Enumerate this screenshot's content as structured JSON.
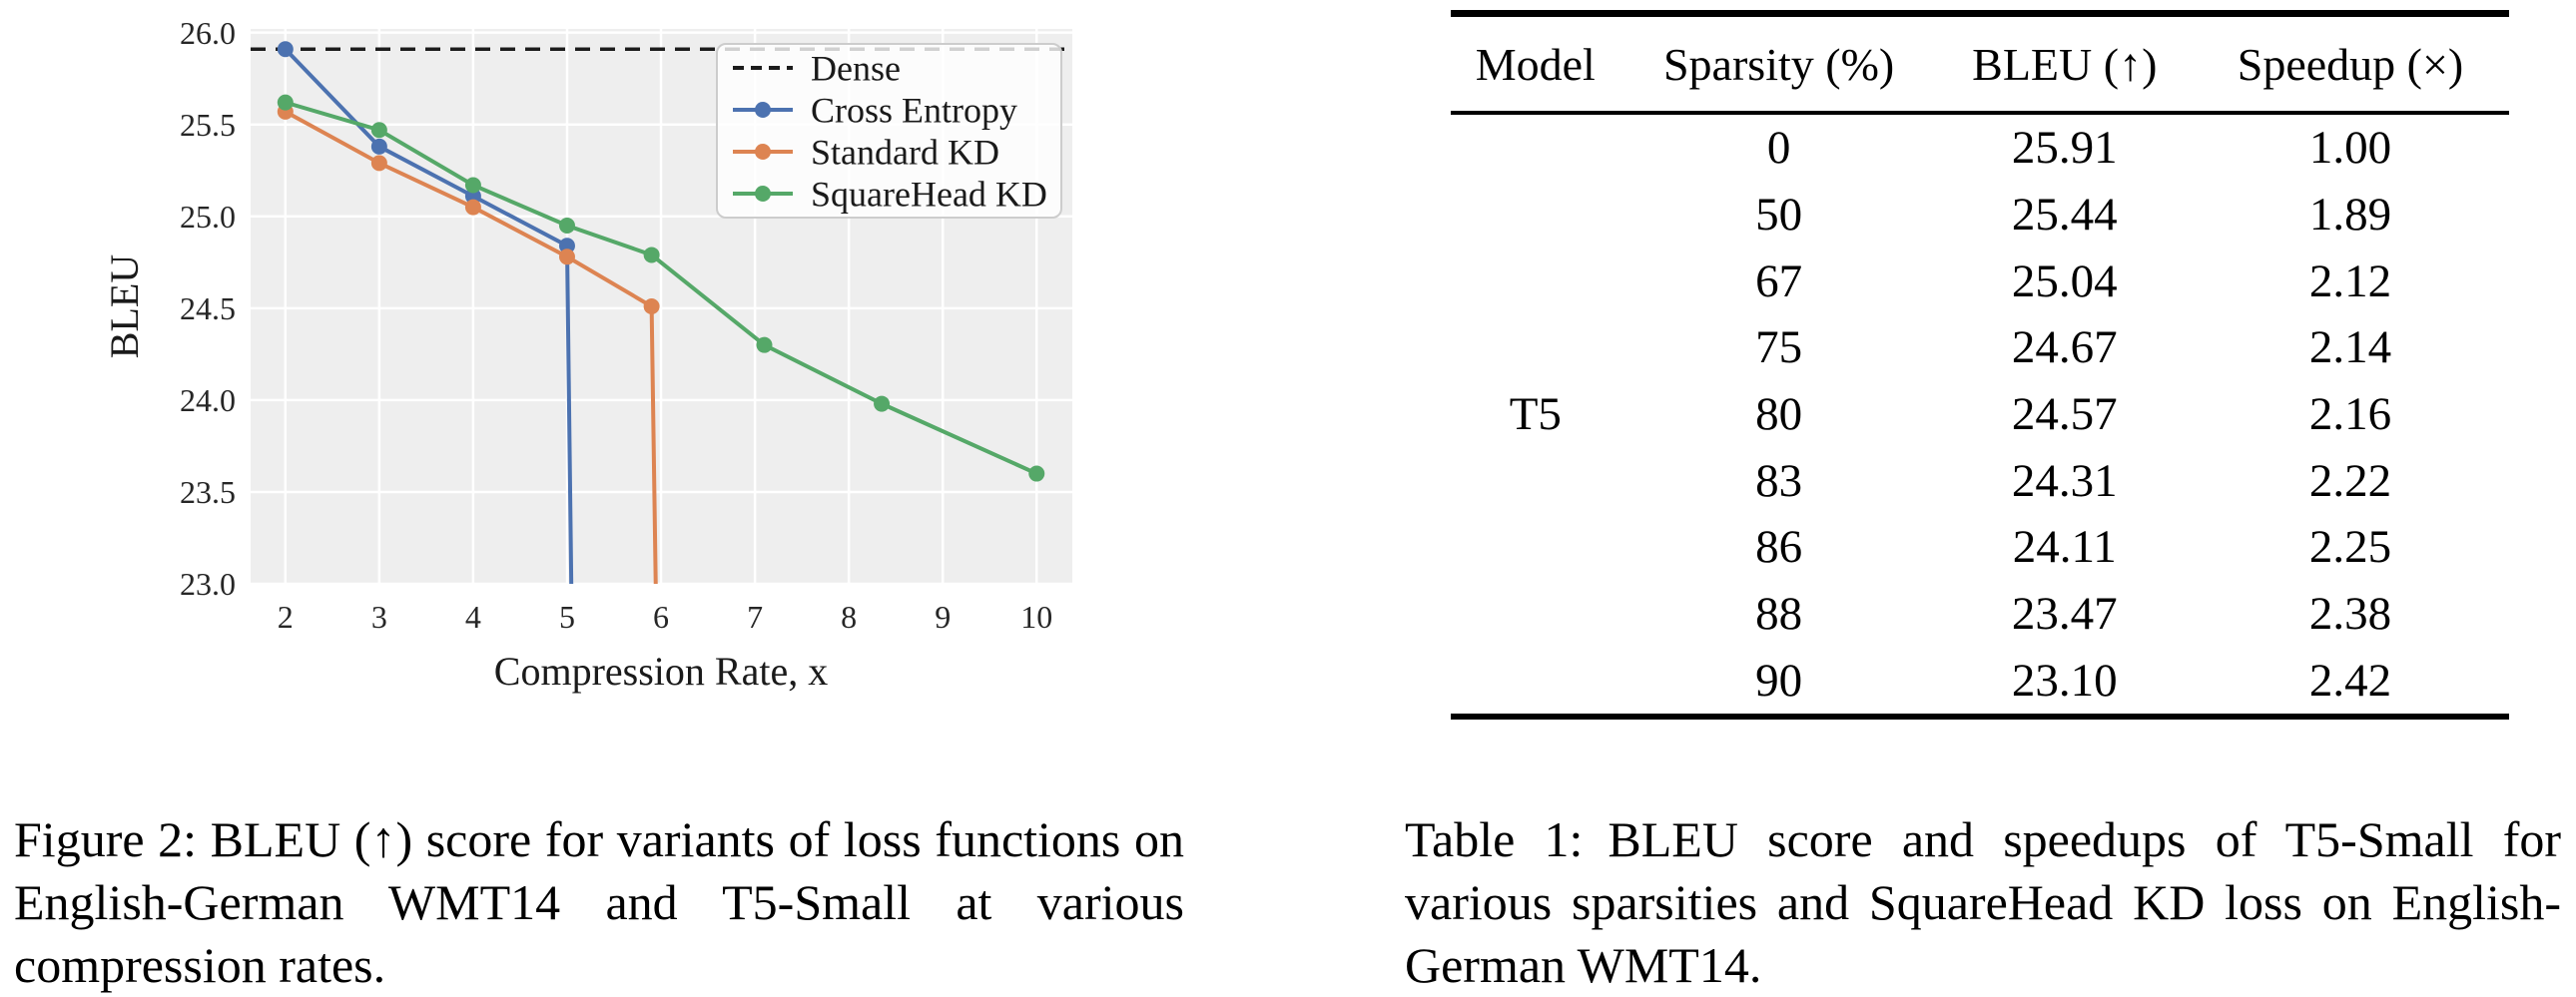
{
  "figure": {
    "caption": "Figure 2: BLEU (↑) score for variants of loss functions on English-German WMT14 and T5-Small at various compression rates."
  },
  "chart_data": {
    "type": "line",
    "title": "",
    "xlabel": "Compression Rate, x",
    "ylabel": "BLEU",
    "xlim": [
      1.63,
      10.38
    ],
    "ylim": [
      23.0,
      26.02
    ],
    "xticks": [
      2,
      3,
      4,
      5,
      6,
      7,
      8,
      9,
      10
    ],
    "yticks": [
      "23.0",
      "23.5",
      "24.0",
      "24.5",
      "25.0",
      "25.5",
      "26.0"
    ],
    "grid": true,
    "legend_position": "upper right",
    "dense_line": {
      "label": "Dense",
      "value": 25.91,
      "style": "dashed",
      "color": "#1c1c1c"
    },
    "series": [
      {
        "name": "Cross Entropy",
        "color": "#4C72B0",
        "x": [
          2,
          3,
          4,
          5
        ],
        "y": [
          25.91,
          25.38,
          25.11,
          24.84
        ],
        "dropoff_x": 5.05
      },
      {
        "name": "Standard KD",
        "color": "#DD8452",
        "x": [
          2,
          3,
          4,
          5,
          5.9
        ],
        "y": [
          25.57,
          25.29,
          25.05,
          24.78,
          24.51
        ],
        "dropoff_x": 5.95
      },
      {
        "name": "SquareHead KD",
        "color": "#55A868",
        "x": [
          2,
          3,
          4,
          5,
          5.9,
          7.1,
          8.35,
          10
        ],
        "y": [
          25.62,
          25.47,
          25.17,
          24.95,
          24.79,
          24.3,
          23.98,
          23.6
        ]
      }
    ]
  },
  "table": {
    "columns": [
      "Model",
      "Sparsity (%)",
      "BLEU (↑)",
      "Speedup (×)"
    ],
    "model": "T5",
    "rows": [
      {
        "sparsity": "0",
        "bleu": "25.91",
        "speedup": "1.00"
      },
      {
        "sparsity": "50",
        "bleu": "25.44",
        "speedup": "1.89"
      },
      {
        "sparsity": "67",
        "bleu": "25.04",
        "speedup": "2.12"
      },
      {
        "sparsity": "75",
        "bleu": "24.67",
        "speedup": "2.14"
      },
      {
        "sparsity": "80",
        "bleu": "24.57",
        "speedup": "2.16"
      },
      {
        "sparsity": "83",
        "bleu": "24.31",
        "speedup": "2.22"
      },
      {
        "sparsity": "86",
        "bleu": "24.11",
        "speedup": "2.25"
      },
      {
        "sparsity": "88",
        "bleu": "23.47",
        "speedup": "2.38"
      },
      {
        "sparsity": "90",
        "bleu": "23.10",
        "speedup": "2.42"
      }
    ],
    "caption": "Table 1: BLEU score and speedups of T5-Small for various sparsities and SquareHead KD loss on English-German WMT14."
  }
}
